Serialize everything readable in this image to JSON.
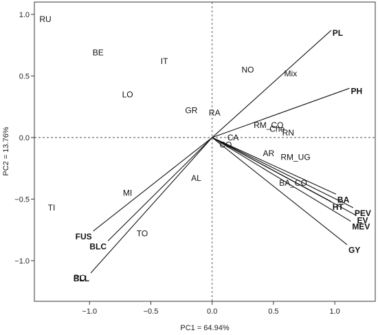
{
  "chart_data": {
    "type": "scatter",
    "title": "",
    "xlabel": "PC1 = 64.94%",
    "ylabel": "PC2 = 13.76%",
    "xlim": [
      -1.45,
      1.33
    ],
    "ylim": [
      -1.33,
      1.1
    ],
    "xticks": [
      -1.0,
      -0.5,
      0.0,
      0.5,
      1.0
    ],
    "xtick_labels": [
      "−1.0",
      "−0.5",
      "0.0",
      "0.5",
      "1.0"
    ],
    "yticks": [
      1.0,
      0.5,
      0.0,
      -0.5,
      -1.0
    ],
    "ytick_labels": [
      "1.0",
      "0.5",
      "0.0",
      "−0.5",
      "−1.0"
    ],
    "reference_lines": {
      "x": 0,
      "y": 0,
      "style": "dashed"
    },
    "observations": [
      {
        "label": "RU",
        "x": -1.36,
        "y": 0.96
      },
      {
        "label": "BE",
        "x": -0.93,
        "y": 0.69
      },
      {
        "label": "IT",
        "x": -0.39,
        "y": 0.62
      },
      {
        "label": "NO",
        "x": 0.29,
        "y": 0.55
      },
      {
        "label": "Mix",
        "x": 0.64,
        "y": 0.52
      },
      {
        "label": "LO",
        "x": -0.69,
        "y": 0.35
      },
      {
        "label": "GR",
        "x": -0.17,
        "y": 0.22
      },
      {
        "label": "RA",
        "x": 0.02,
        "y": 0.2
      },
      {
        "label": "RM_CO",
        "x": 0.46,
        "y": 0.1
      },
      {
        "label": "Che",
        "x": 0.53,
        "y": 0.07
      },
      {
        "label": "RN",
        "x": 0.62,
        "y": 0.04
      },
      {
        "label": "CA",
        "x": 0.17,
        "y": 0.0
      },
      {
        "label": "CO",
        "x": 0.11,
        "y": -0.06
      },
      {
        "label": "AR",
        "x": 0.46,
        "y": -0.13
      },
      {
        "label": "RM_UG",
        "x": 0.68,
        "y": -0.16
      },
      {
        "label": "AL",
        "x": -0.13,
        "y": -0.33
      },
      {
        "label": "BA_CO",
        "x": 0.66,
        "y": -0.37
      },
      {
        "label": "MI",
        "x": -0.69,
        "y": -0.45
      },
      {
        "label": "TI",
        "x": -1.31,
        "y": -0.57
      },
      {
        "label": "TO",
        "x": -0.57,
        "y": -0.78
      },
      {
        "label": "RO",
        "x": -1.08,
        "y": -1.14
      }
    ],
    "loadings": [
      {
        "label": "PL",
        "x": 0.97,
        "y": 0.87
      },
      {
        "label": "PH",
        "x": 1.12,
        "y": 0.4
      },
      {
        "label": "BA",
        "x": 1.01,
        "y": -0.46
      },
      {
        "label": "HT",
        "x": 0.97,
        "y": -0.52
      },
      {
        "label": "PEV",
        "x": 1.15,
        "y": -0.57
      },
      {
        "label": "EV",
        "x": 1.17,
        "y": -0.63
      },
      {
        "label": "MEV",
        "x": 1.13,
        "y": -0.68
      },
      {
        "label": "GY",
        "x": 1.1,
        "y": -0.87
      },
      {
        "label": "FUS",
        "x": -0.97,
        "y": -0.76
      },
      {
        "label": "BLC",
        "x": -0.85,
        "y": -0.84
      },
      {
        "label": "BLL",
        "x": -0.99,
        "y": -1.1
      }
    ],
    "grid": false,
    "legend": "none"
  }
}
